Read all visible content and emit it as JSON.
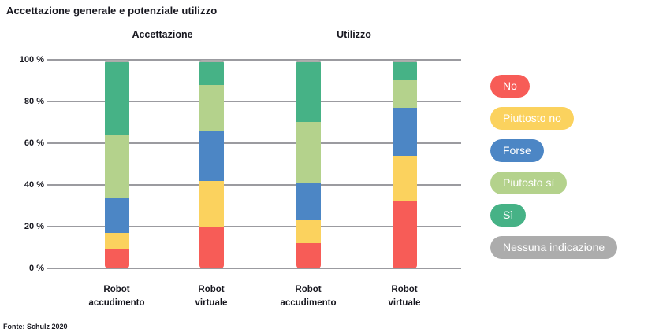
{
  "title": "Accettazione generale e potenziale utilizzo",
  "source": "Fonte: Schulz 2020",
  "chart_data": {
    "type": "bar",
    "subtype": "stacked-percent",
    "title": "Accettazione generale e potenziale utilizzo",
    "groups": [
      {
        "label": "Accettazione"
      },
      {
        "label": "Utilizzo"
      }
    ],
    "ylim": [
      0,
      100
    ],
    "yticks": [
      0,
      20,
      40,
      60,
      80,
      100
    ],
    "ytick_suffix": " %",
    "grid": "horizontal",
    "legend_position": "right",
    "series_order_bottom_to_top": [
      "No",
      "Piuttosto no",
      "Forse",
      "Piutosto sì",
      "Sì",
      "Nessuna indicazione"
    ],
    "colors": {
      "No": "#F75C57",
      "Piuttosto no": "#FBD25E",
      "Forse": "#4C86C5",
      "Piutosto sì": "#B4D28C",
      "Sì": "#46B286",
      "Nessuna indicazione": "#ACACAC"
    },
    "bars": [
      {
        "group": "Accettazione",
        "label_line1": "Robot",
        "label_line2": "accudimento",
        "values": {
          "No": 9,
          "Piuttosto no": 8,
          "Forse": 17,
          "Piutosto sì": 30,
          "Sì": 35,
          "Nessuna indicazione": 1
        }
      },
      {
        "group": "Accettazione",
        "label_line1": "Robot",
        "label_line2": "virtuale",
        "values": {
          "No": 20,
          "Piuttosto no": 22,
          "Forse": 24,
          "Piutosto sì": 22,
          "Sì": 11,
          "Nessuna indicazione": 1
        }
      },
      {
        "group": "Utilizzo",
        "label_line1": "Robot",
        "label_line2": "accudimento",
        "values": {
          "No": 12,
          "Piuttosto no": 11,
          "Forse": 18,
          "Piutosto sì": 29,
          "Sì": 29,
          "Nessuna indicazione": 1
        }
      },
      {
        "group": "Utilizzo",
        "label_line1": "Robot",
        "label_line2": "virtuale",
        "values": {
          "No": 32,
          "Piuttosto no": 22,
          "Forse": 23,
          "Piutosto sì": 13,
          "Sì": 9,
          "Nessuna indicazione": 1
        }
      }
    ]
  },
  "legend": {
    "items": [
      {
        "label": "No",
        "color": "#F75C57"
      },
      {
        "label": "Piuttosto no",
        "color": "#FBD25E"
      },
      {
        "label": "Forse",
        "color": "#4C86C5"
      },
      {
        "label": "Piutosto sì",
        "color": "#B4D28C"
      },
      {
        "label": "Sì",
        "color": "#46B286"
      },
      {
        "label": "Nessuna indicazione",
        "color": "#ACACAC"
      }
    ]
  }
}
